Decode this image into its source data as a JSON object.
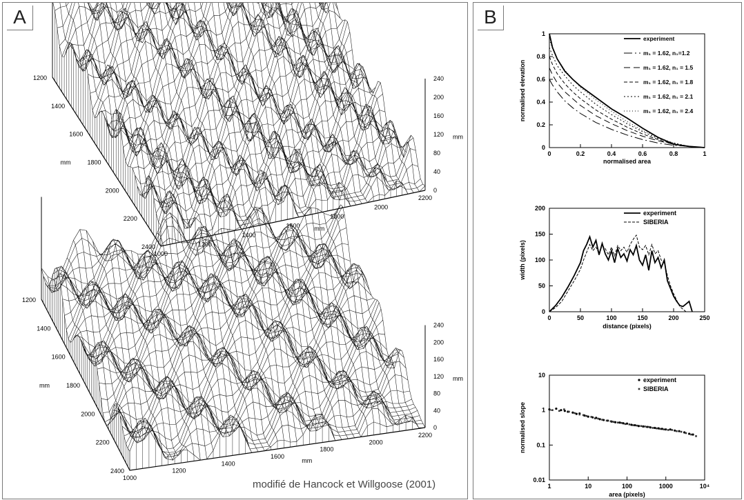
{
  "panelA": {
    "label": "A",
    "credit": "modifié de Hancock et Willgoose (2001)",
    "surfaces": [
      {
        "y_ticks": [
          "1200",
          "1400",
          "1600",
          "1800",
          "2000",
          "2200",
          "2400"
        ],
        "y_axis_label": "mm",
        "x_ticks": [
          "1000",
          "1200",
          "1400",
          "1600",
          "1800",
          "2000",
          "2200"
        ],
        "x_axis_label": "mm",
        "z_ticks": [
          "240",
          "200",
          "160",
          "120",
          "80",
          "40",
          "0"
        ],
        "z_axis_label": "mm"
      },
      {
        "y_ticks": [
          "1200",
          "1400",
          "1600",
          "1800",
          "2000",
          "2200",
          "2400"
        ],
        "y_axis_label": "mm",
        "x_ticks": [
          "1000",
          "1200",
          "1400",
          "1600",
          "1800",
          "2000",
          "2200"
        ],
        "x_axis_label": "mm",
        "z_ticks": [
          "240",
          "200",
          "160",
          "120",
          "80",
          "40",
          "0"
        ],
        "z_axis_label": "mm"
      }
    ]
  },
  "panelB": {
    "label": "B"
  },
  "chart_data": [
    {
      "type": "line",
      "xlabel": "normalised area",
      "ylabel": "normalised elevation",
      "xlim": [
        0,
        1
      ],
      "ylim": [
        0,
        1
      ],
      "xticks": [
        "0",
        "0.2",
        "0.4",
        "0.6",
        "0.8",
        "1"
      ],
      "yticks": [
        "0",
        "0.2",
        "0.4",
        "0.6",
        "0.8",
        "1"
      ],
      "legend_position": "top-right",
      "x": [
        0,
        0.02,
        0.05,
        0.1,
        0.15,
        0.2,
        0.3,
        0.4,
        0.5,
        0.6,
        0.7,
        0.8,
        0.9,
        1
      ],
      "series": [
        {
          "name": "experiment",
          "values": [
            1,
            0.88,
            0.78,
            0.67,
            0.6,
            0.54,
            0.44,
            0.34,
            0.26,
            0.17,
            0.09,
            0.03,
            0.01,
            0
          ]
        },
        {
          "name": "m₁ = 1.62, n₁=1.2",
          "values": [
            0.6,
            0.55,
            0.49,
            0.41,
            0.35,
            0.3,
            0.22,
            0.16,
            0.11,
            0.07,
            0.04,
            0.02,
            0.01,
            0
          ]
        },
        {
          "name": "m₁ = 1.62, n₁ = 1.5",
          "values": [
            0.7,
            0.64,
            0.57,
            0.49,
            0.43,
            0.37,
            0.28,
            0.21,
            0.15,
            0.1,
            0.06,
            0.03,
            0.01,
            0
          ]
        },
        {
          "name": "m₁ = 1.62, n₁ = 1.8",
          "values": [
            0.8,
            0.73,
            0.65,
            0.56,
            0.49,
            0.43,
            0.33,
            0.25,
            0.18,
            0.12,
            0.07,
            0.03,
            0.01,
            0
          ]
        },
        {
          "name": "m₁ = 1.62, n₁ = 2.1",
          "values": [
            0.88,
            0.81,
            0.72,
            0.63,
            0.55,
            0.49,
            0.38,
            0.29,
            0.21,
            0.14,
            0.08,
            0.04,
            0.01,
            0
          ]
        },
        {
          "name": "m₁ = 1.62, n₁ = 2.4",
          "values": [
            0.95,
            0.87,
            0.78,
            0.68,
            0.6,
            0.53,
            0.42,
            0.32,
            0.23,
            0.15,
            0.09,
            0.04,
            0.01,
            0
          ]
        }
      ]
    },
    {
      "type": "line",
      "xlabel": "distance (pixels)",
      "ylabel": "width (pixels)",
      "xlim": [
        0,
        250
      ],
      "ylim": [
        0,
        200
      ],
      "xticks": [
        "0",
        "50",
        "100",
        "150",
        "200",
        "250"
      ],
      "yticks": [
        "0",
        "50",
        "100",
        "150",
        "200"
      ],
      "legend_position": "top-right",
      "x": [
        0,
        10,
        20,
        30,
        40,
        50,
        55,
        60,
        65,
        70,
        75,
        80,
        85,
        90,
        95,
        100,
        105,
        110,
        115,
        120,
        125,
        130,
        135,
        140,
        145,
        150,
        155,
        160,
        165,
        170,
        175,
        180,
        185,
        190,
        195,
        200,
        205,
        210,
        215,
        220,
        225,
        230
      ],
      "series": [
        {
          "name": "experiment",
          "values": [
            0,
            12,
            28,
            48,
            70,
            95,
            118,
            130,
            145,
            125,
            138,
            110,
            132,
            112,
            100,
            118,
            95,
            122,
            105,
            112,
            98,
            120,
            110,
            128,
            100,
            90,
            110,
            80,
            118,
            95,
            105,
            85,
            100,
            60,
            45,
            30,
            20,
            12,
            10,
            15,
            20,
            0
          ]
        },
        {
          "name": "SIBERIA",
          "values": [
            0,
            8,
            20,
            40,
            60,
            82,
            100,
            115,
            130,
            118,
            125,
            112,
            128,
            122,
            110,
            125,
            108,
            128,
            118,
            125,
            115,
            130,
            140,
            148,
            125,
            120,
            128,
            110,
            130,
            112,
            118,
            100,
            95,
            70,
            50,
            35,
            22,
            10,
            5,
            0,
            null,
            null
          ]
        }
      ]
    },
    {
      "type": "scatter",
      "xlabel": "area (pixels)",
      "ylabel": "normalised slope",
      "xscale": "log",
      "yscale": "log",
      "xlim": [
        1,
        10000
      ],
      "ylim": [
        0.01,
        10
      ],
      "xticks": [
        "1",
        "10",
        "100",
        "1000",
        "10⁴"
      ],
      "yticks": [
        "0.01",
        "0.1",
        "1",
        "10"
      ],
      "legend_position": "top-right",
      "series": [
        {
          "name": "experiment",
          "points": [
            [
              1,
              1.05
            ],
            [
              1.5,
              1.1
            ],
            [
              2,
              1.0
            ],
            [
              2.5,
              0.95
            ],
            [
              3,
              0.9
            ],
            [
              4,
              0.85
            ],
            [
              5,
              0.78
            ],
            [
              6,
              0.8
            ],
            [
              8,
              0.7
            ],
            [
              10,
              0.65
            ],
            [
              13,
              0.62
            ],
            [
              16,
              0.6
            ],
            [
              20,
              0.55
            ],
            [
              25,
              0.52
            ],
            [
              32,
              0.5
            ],
            [
              40,
              0.47
            ],
            [
              50,
              0.45
            ],
            [
              65,
              0.44
            ],
            [
              80,
              0.42
            ],
            [
              100,
              0.41
            ],
            [
              130,
              0.38
            ],
            [
              160,
              0.37
            ],
            [
              200,
              0.35
            ],
            [
              260,
              0.34
            ],
            [
              330,
              0.33
            ],
            [
              400,
              0.32
            ],
            [
              520,
              0.31
            ],
            [
              650,
              0.3
            ],
            [
              800,
              0.29
            ],
            [
              1000,
              0.28
            ],
            [
              1300,
              0.28
            ],
            [
              1700,
              0.26
            ],
            [
              2200,
              0.25
            ],
            [
              3000,
              0.23
            ],
            [
              4000,
              0.21
            ],
            [
              5000,
              0.2
            ]
          ]
        },
        {
          "name": "SIBERIA",
          "points": [
            [
              1.2,
              1.0
            ],
            [
              1.8,
              0.95
            ],
            [
              2.4,
              1.05
            ],
            [
              3.2,
              0.9
            ],
            [
              4.5,
              0.82
            ],
            [
              6,
              0.75
            ],
            [
              7.5,
              0.72
            ],
            [
              9,
              0.68
            ],
            [
              12,
              0.64
            ],
            [
              15,
              0.58
            ],
            [
              18,
              0.57
            ],
            [
              23,
              0.53
            ],
            [
              30,
              0.5
            ],
            [
              38,
              0.48
            ],
            [
              45,
              0.46
            ],
            [
              58,
              0.44
            ],
            [
              72,
              0.43
            ],
            [
              90,
              0.4
            ],
            [
              115,
              0.39
            ],
            [
              145,
              0.37
            ],
            [
              180,
              0.36
            ],
            [
              230,
              0.35
            ],
            [
              290,
              0.34
            ],
            [
              360,
              0.33
            ],
            [
              460,
              0.31
            ],
            [
              580,
              0.3
            ],
            [
              720,
              0.29
            ],
            [
              900,
              0.28
            ],
            [
              1150,
              0.27
            ],
            [
              1450,
              0.27
            ],
            [
              1900,
              0.25
            ],
            [
              2500,
              0.24
            ],
            [
              3300,
              0.22
            ],
            [
              4500,
              0.2
            ],
            [
              6000,
              0.18
            ]
          ]
        }
      ]
    }
  ]
}
